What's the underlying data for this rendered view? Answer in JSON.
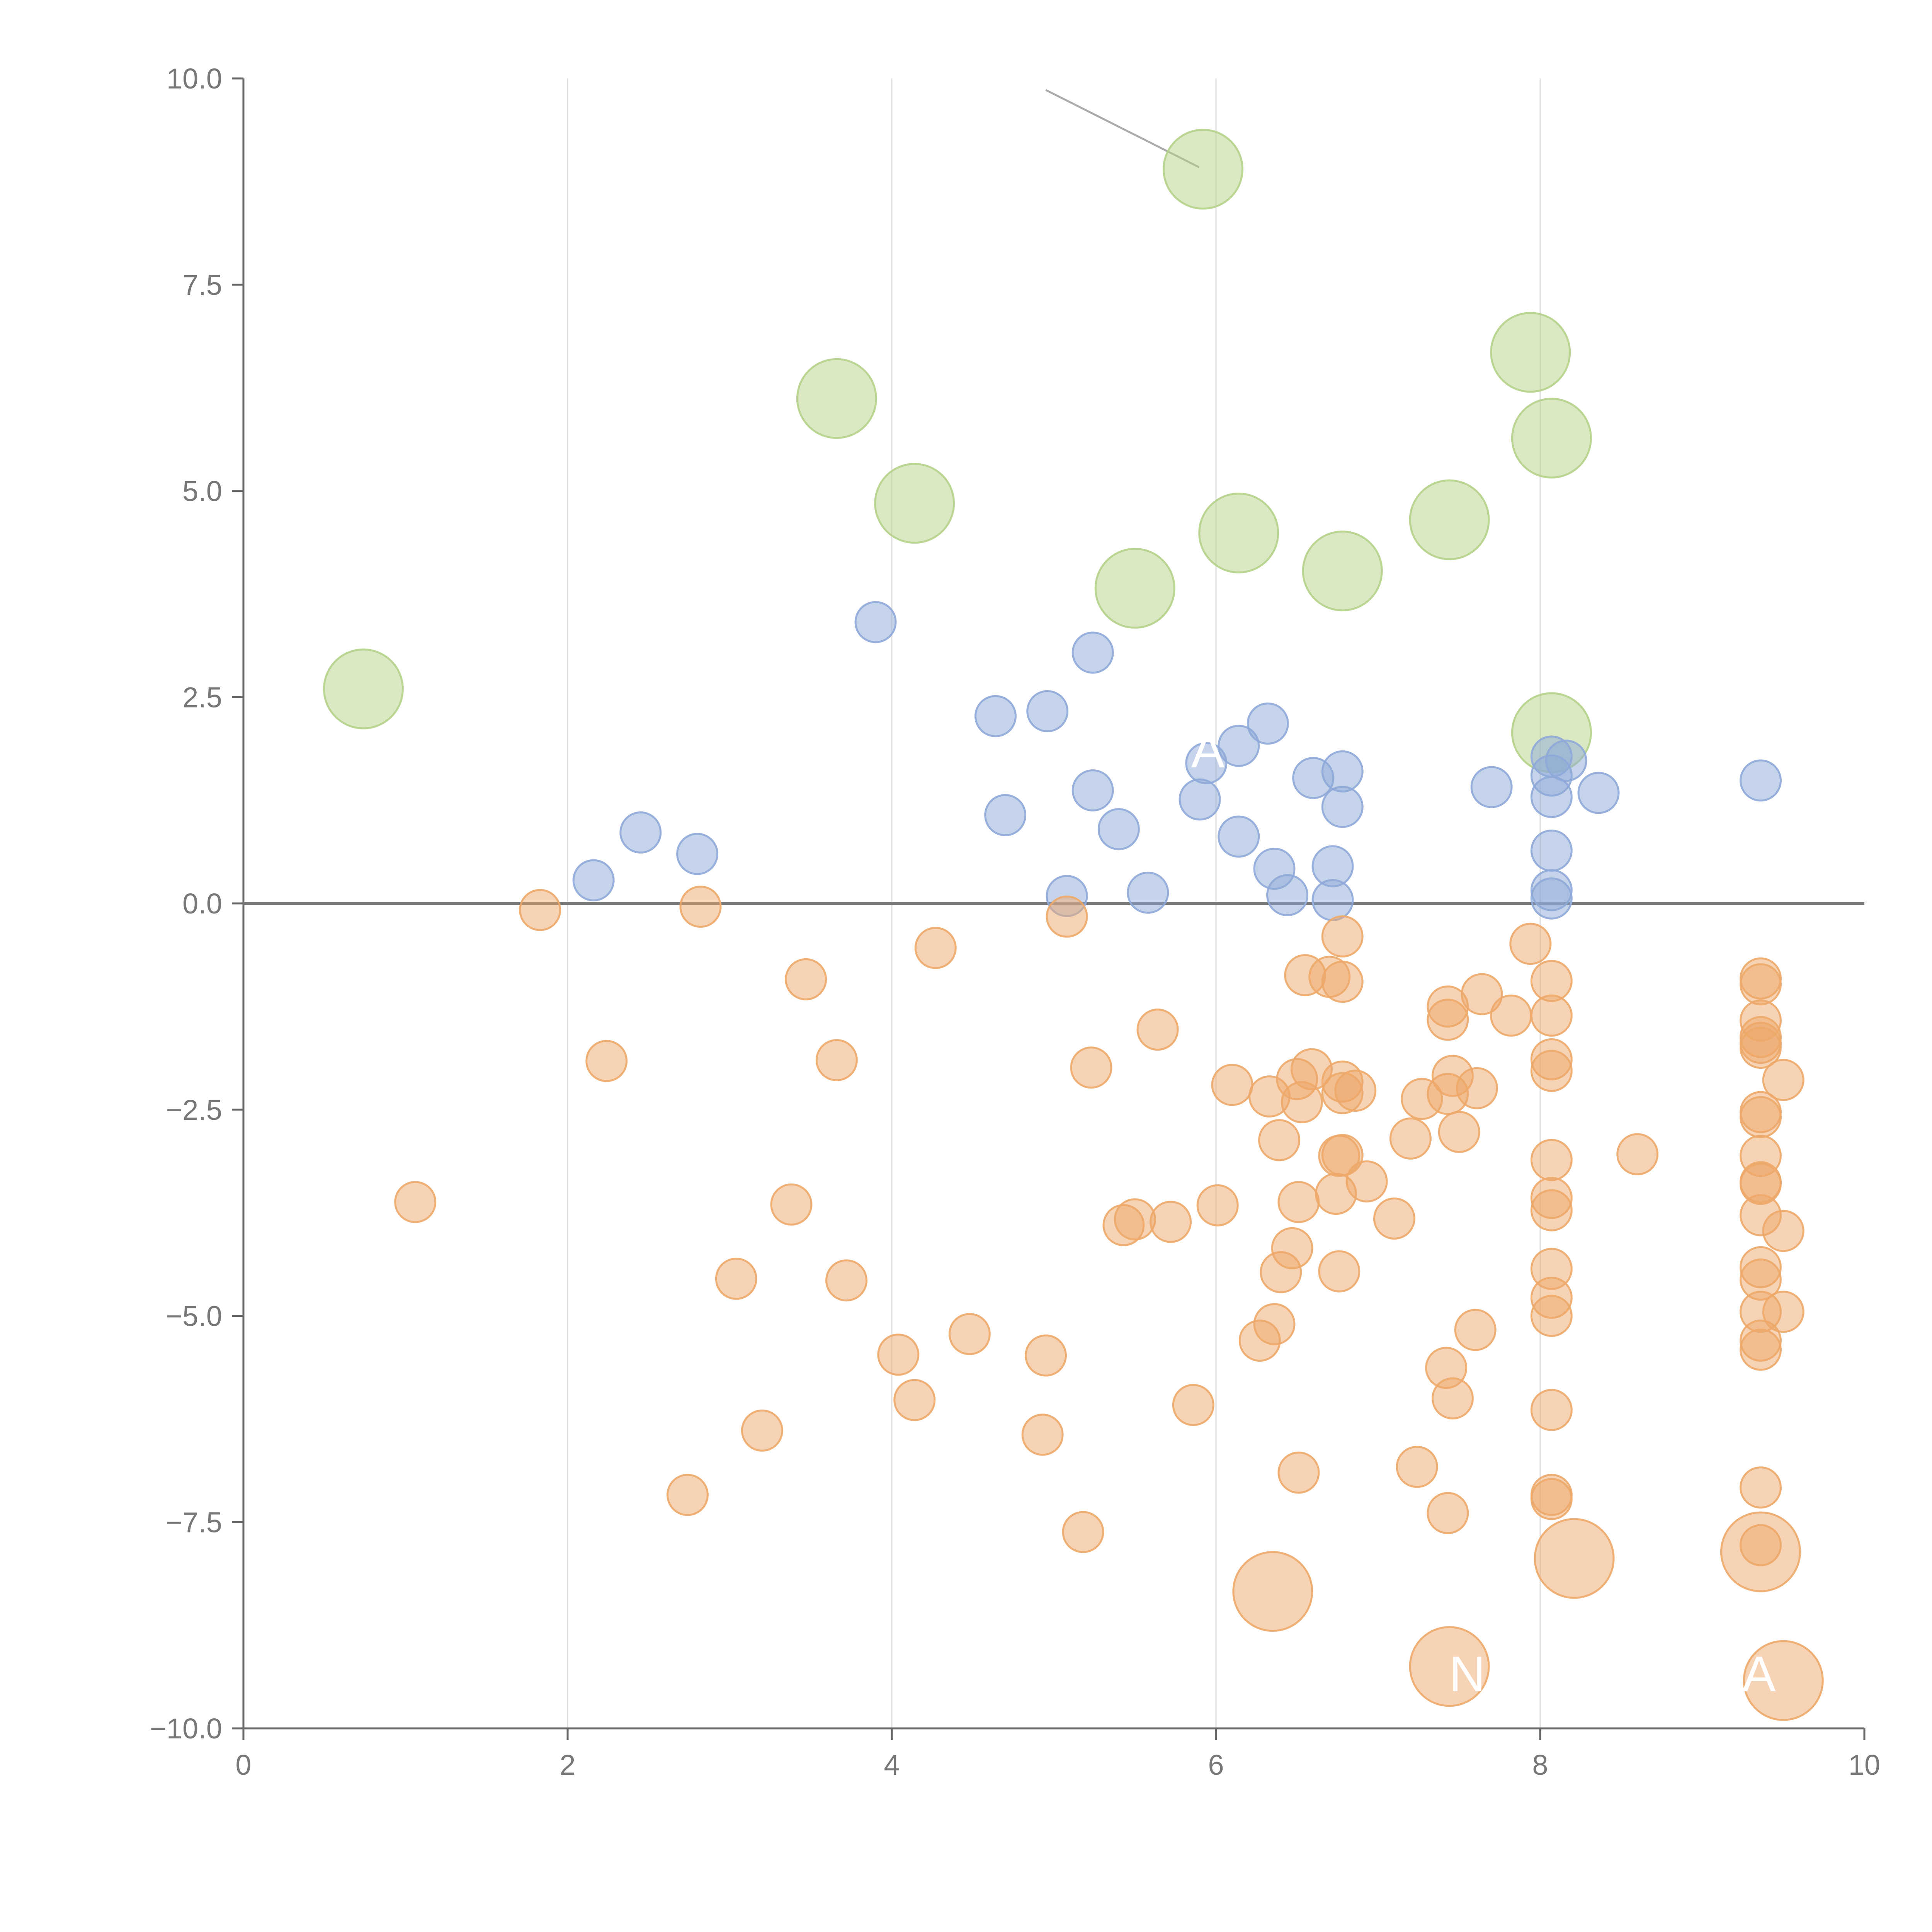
{
  "chart_data": {
    "type": "scatter",
    "title": "",
    "xlabel": "",
    "ylabel": "",
    "xlim": [
      0,
      10
    ],
    "ylim": [
      -10,
      10
    ],
    "x_ticks": [
      0,
      2,
      4,
      6,
      8,
      10
    ],
    "y_ticks": [
      -10,
      -7.5,
      -5,
      -2.5,
      0,
      2.5,
      5,
      7.5,
      10
    ],
    "x_tick_labels": [
      "0",
      "2",
      "4",
      "6",
      "8",
      "10"
    ],
    "y_tick_labels": [
      "−10.0",
      "−7.5",
      "−5.0",
      "−2.5",
      "0.0",
      "2.5",
      "5.0",
      "7.5",
      "10.0"
    ],
    "grid": "vertical",
    "reference_line_y": 0,
    "colors": {
      "green": "#b5d18a",
      "blue": "#8ea9d8",
      "orange": "#eda869",
      "axis": "#666666",
      "grid": "#dddddd",
      "zero_line": "#777777"
    },
    "series": [
      {
        "name": "green",
        "color": "#b5d18a",
        "size": "large",
        "points": [
          [
            0.74,
            2.6
          ],
          [
            5.92,
            8.9
          ],
          [
            3.66,
            6.12
          ],
          [
            4.14,
            4.85
          ],
          [
            5.5,
            3.82
          ],
          [
            6.14,
            4.49
          ],
          [
            6.78,
            4.03
          ],
          [
            7.44,
            4.65
          ],
          [
            7.94,
            6.68
          ],
          [
            8.07,
            5.64
          ],
          [
            8.07,
            2.07
          ]
        ]
      },
      {
        "name": "blue",
        "color": "#8ea9d8",
        "size": "small",
        "points": [
          [
            2.16,
            0.28
          ],
          [
            2.45,
            0.86
          ],
          [
            2.8,
            0.6
          ],
          [
            3.9,
            3.41
          ],
          [
            4.64,
            2.27
          ],
          [
            4.7,
            1.07
          ],
          [
            4.96,
            2.33
          ],
          [
            5.08,
            0.09
          ],
          [
            5.24,
            3.04
          ],
          [
            5.24,
            1.37
          ],
          [
            5.4,
            0.9
          ],
          [
            5.58,
            0.13
          ],
          [
            5.9,
            1.26
          ],
          [
            5.94,
            1.7
          ],
          [
            6.14,
            1.91
          ],
          [
            6.14,
            0.81
          ],
          [
            6.32,
            2.18
          ],
          [
            6.36,
            0.42
          ],
          [
            6.44,
            0.1
          ],
          [
            6.6,
            1.52
          ],
          [
            6.72,
            0.45
          ],
          [
            6.72,
            0.04
          ],
          [
            6.78,
            1.6
          ],
          [
            6.78,
            1.17
          ],
          [
            7.7,
            1.41
          ],
          [
            8.07,
            1.78
          ],
          [
            8.07,
            1.55
          ],
          [
            8.07,
            1.29
          ],
          [
            8.07,
            0.64
          ],
          [
            8.07,
            0.16
          ],
          [
            8.07,
            0.06
          ],
          [
            8.16,
            1.73
          ],
          [
            8.36,
            1.34
          ],
          [
            9.36,
            1.49
          ]
        ]
      },
      {
        "name": "orange",
        "color": "#eda869",
        "size": "small",
        "points": [
          [
            1.06,
            -3.62
          ],
          [
            1.83,
            -0.08
          ],
          [
            2.24,
            -1.91
          ],
          [
            2.74,
            -7.17
          ],
          [
            2.82,
            -0.04
          ],
          [
            3.04,
            -4.55
          ],
          [
            3.2,
            -6.39
          ],
          [
            3.38,
            -3.65
          ],
          [
            3.47,
            -0.92
          ],
          [
            3.66,
            -1.9
          ],
          [
            3.72,
            -4.57
          ],
          [
            4.04,
            -5.47
          ],
          [
            4.14,
            -6.02
          ],
          [
            4.27,
            -0.54
          ],
          [
            4.48,
            -5.22
          ],
          [
            4.93,
            -6.44
          ],
          [
            4.95,
            -5.48
          ],
          [
            5.08,
            -0.16
          ],
          [
            5.18,
            -7.62
          ],
          [
            5.23,
            -1.99
          ],
          [
            5.43,
            -3.9
          ],
          [
            5.5,
            -3.83
          ],
          [
            5.64,
            -1.53
          ],
          [
            5.72,
            -3.86
          ],
          [
            5.86,
            -6.08
          ],
          [
            6.01,
            -3.66
          ],
          [
            6.1,
            -2.2
          ],
          [
            6.27,
            -5.3
          ],
          [
            6.33,
            -2.34
          ],
          [
            6.36,
            -5.1
          ],
          [
            6.39,
            -2.87
          ],
          [
            6.4,
            -4.47
          ],
          [
            6.47,
            -4.18
          ],
          [
            6.5,
            -2.13
          ],
          [
            6.51,
            -3.62
          ],
          [
            6.51,
            -6.9
          ],
          [
            6.53,
            -2.41
          ],
          [
            6.55,
            -0.87
          ],
          [
            6.59,
            -2.01
          ],
          [
            6.7,
            -0.89
          ],
          [
            6.74,
            -3.52
          ],
          [
            6.76,
            -4.46
          ],
          [
            6.76,
            -3.06
          ],
          [
            6.78,
            -0.4
          ],
          [
            6.78,
            -0.95
          ],
          [
            6.78,
            -2.16
          ],
          [
            6.78,
            -2.3
          ],
          [
            6.78,
            -3.05
          ],
          [
            6.86,
            -2.27
          ],
          [
            6.93,
            -3.37
          ],
          [
            7.1,
            -3.82
          ],
          [
            7.2,
            -2.85
          ],
          [
            7.24,
            -6.83
          ],
          [
            7.27,
            -2.37
          ],
          [
            7.42,
            -5.63
          ],
          [
            7.43,
            -1.25
          ],
          [
            7.43,
            -1.41
          ],
          [
            7.43,
            -2.31
          ],
          [
            7.43,
            -7.39
          ],
          [
            7.46,
            -2.09
          ],
          [
            7.46,
            -6.0
          ],
          [
            7.5,
            -2.77
          ],
          [
            7.6,
            -5.17
          ],
          [
            7.61,
            -2.24
          ],
          [
            7.64,
            -1.1
          ],
          [
            7.82,
            -1.36
          ],
          [
            7.94,
            -0.49
          ],
          [
            8.07,
            -0.94
          ],
          [
            8.07,
            -1.36
          ],
          [
            8.07,
            -1.89
          ],
          [
            8.07,
            -2.03
          ],
          [
            8.07,
            -3.11
          ],
          [
            8.07,
            -3.57
          ],
          [
            8.07,
            -3.72
          ],
          [
            8.07,
            -4.43
          ],
          [
            8.07,
            -4.78
          ],
          [
            8.07,
            -5.0
          ],
          [
            8.07,
            -6.14
          ],
          [
            8.07,
            -7.17
          ],
          [
            8.07,
            -7.22
          ],
          [
            8.6,
            -3.04
          ],
          [
            9.36,
            -0.91
          ],
          [
            9.36,
            -0.98
          ],
          [
            9.36,
            -1.42
          ],
          [
            9.36,
            -1.62
          ],
          [
            9.36,
            -1.69
          ],
          [
            9.36,
            -1.75
          ],
          [
            9.36,
            -2.53
          ],
          [
            9.36,
            -2.59
          ],
          [
            9.36,
            -3.06
          ],
          [
            9.36,
            -3.38
          ],
          [
            9.36,
            -3.4
          ],
          [
            9.36,
            -3.78
          ],
          [
            9.36,
            -4.41
          ],
          [
            9.36,
            -4.56
          ],
          [
            9.36,
            -4.95
          ],
          [
            9.36,
            -5.3
          ],
          [
            9.36,
            -5.41
          ],
          [
            9.36,
            -7.08
          ],
          [
            9.36,
            -7.78
          ],
          [
            9.5,
            -2.14
          ],
          [
            9.5,
            -3.97
          ],
          [
            9.5,
            -4.95
          ]
        ]
      },
      {
        "name": "orange-large",
        "color": "#eda869",
        "size": "large",
        "points": [
          [
            6.35,
            -8.34
          ],
          [
            7.44,
            -9.25
          ],
          [
            8.21,
            -7.94
          ],
          [
            9.36,
            -7.86
          ],
          [
            9.5,
            -9.42
          ]
        ]
      }
    ],
    "annotations": [
      {
        "text": "A",
        "x": 5.95,
        "y": 1.65
      },
      {
        "text": "N",
        "x": 7.55,
        "y": -9.55
      },
      {
        "text": "A",
        "x": 9.35,
        "y": -9.55
      }
    ]
  }
}
